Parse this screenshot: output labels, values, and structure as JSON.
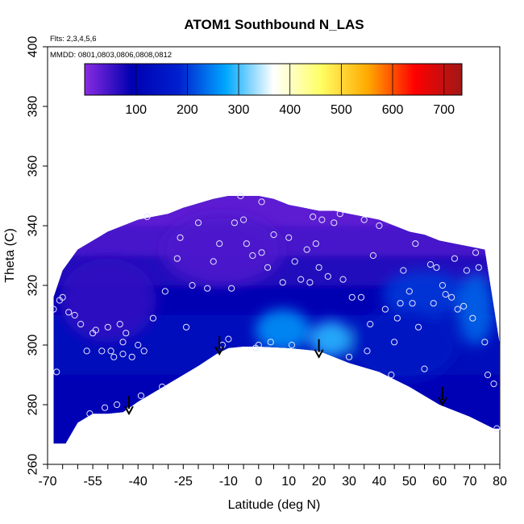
{
  "chart_data": {
    "type": "heatmap",
    "title": "ATOM1 Southbound N_LAS",
    "flights_note": "Flts: 2,3,4,5,6",
    "dates_note": "MMDD: 0801,0803,0806,0808,0812",
    "xlabel": "Latitude (deg N)",
    "ylabel": "Theta (C)",
    "xlim": [
      -70,
      80
    ],
    "ylim": [
      260,
      400
    ],
    "x_ticks": [
      -70,
      -55,
      -40,
      -25,
      -10,
      0,
      10,
      20,
      30,
      40,
      50,
      60,
      70,
      80
    ],
    "y_ticks": [
      260,
      280,
      300,
      320,
      340,
      360,
      380,
      400
    ],
    "colorbar": {
      "range": [
        0,
        735
      ],
      "ticks": [
        100,
        200,
        300,
        400,
        500,
        600,
        700
      ],
      "colors": [
        "#8a2be2",
        "#0000b0",
        "#0020d0",
        "#00a8ff",
        "#ffffff",
        "#ffff66",
        "#ffaa00",
        "#ff0000",
        "#a01818"
      ]
    },
    "coverage_upper": [
      [
        -68,
        316
      ],
      [
        -65,
        325
      ],
      [
        -60,
        332
      ],
      [
        -55,
        335
      ],
      [
        -50,
        338
      ],
      [
        -45,
        340
      ],
      [
        -40,
        342
      ],
      [
        -35,
        343
      ],
      [
        -30,
        344
      ],
      [
        -25,
        346
      ],
      [
        -20,
        347.5
      ],
      [
        -15,
        349
      ],
      [
        -10,
        350
      ],
      [
        -5,
        350
      ],
      [
        0,
        350
      ],
      [
        5,
        349
      ],
      [
        10,
        347
      ],
      [
        15,
        346
      ],
      [
        20,
        345
      ],
      [
        25,
        345
      ],
      [
        30,
        344
      ],
      [
        35,
        343
      ],
      [
        40,
        342
      ],
      [
        45,
        340
      ],
      [
        50,
        338
      ],
      [
        55,
        337
      ],
      [
        60,
        335
      ],
      [
        65,
        334
      ],
      [
        70,
        333
      ],
      [
        75,
        332
      ],
      [
        80,
        300
      ]
    ],
    "coverage_lower": [
      [
        80,
        300
      ],
      [
        80,
        272
      ],
      [
        78,
        272
      ],
      [
        70,
        276
      ],
      [
        60,
        280
      ],
      [
        50,
        286
      ],
      [
        40,
        291
      ],
      [
        30,
        294
      ],
      [
        20,
        298
      ],
      [
        10,
        299
      ],
      [
        0,
        299.5
      ],
      [
        -5,
        299.5
      ],
      [
        -10,
        299
      ],
      [
        -14,
        297
      ],
      [
        -20,
        293
      ],
      [
        -25,
        290
      ],
      [
        -30,
        287
      ],
      [
        -35,
        284
      ],
      [
        -40,
        281
      ],
      [
        -45,
        277.5
      ],
      [
        -50,
        277
      ],
      [
        -55,
        277
      ],
      [
        -60,
        274
      ],
      [
        -64,
        267
      ],
      [
        -68,
        267
      ],
      [
        -68,
        316
      ]
    ],
    "enhanced_regions": [
      {
        "center": [
          8,
          305
        ],
        "rx": 9,
        "ry": 7,
        "value": 260
      },
      {
        "center": [
          24,
          302
        ],
        "rx": 7,
        "ry": 6,
        "value": 290
      },
      {
        "center": [
          55,
          317
        ],
        "rx": 14,
        "ry": 8,
        "value": 200
      },
      {
        "center": [
          72,
          312
        ],
        "rx": 6,
        "ry": 12,
        "value": 230
      },
      {
        "center": [
          48,
          300
        ],
        "rx": 18,
        "ry": 12,
        "value": 150
      },
      {
        "center": [
          -50,
          315
        ],
        "rx": 16,
        "ry": 14,
        "value": 60
      },
      {
        "center": [
          -12,
          332
        ],
        "rx": 20,
        "ry": 12,
        "value": 40
      }
    ],
    "observations": [
      [
        -68,
        312
      ],
      [
        -67,
        291
      ],
      [
        -66,
        315
      ],
      [
        -65,
        316
      ],
      [
        -63,
        311
      ],
      [
        -61,
        310
      ],
      [
        -59,
        307
      ],
      [
        -57,
        298
      ],
      [
        -56,
        277
      ],
      [
        -55,
        304
      ],
      [
        -54,
        305
      ],
      [
        -52,
        298
      ],
      [
        -51,
        279
      ],
      [
        -50,
        306
      ],
      [
        -49,
        298
      ],
      [
        -48,
        296
      ],
      [
        -47,
        280
      ],
      [
        -46,
        307
      ],
      [
        -45,
        301
      ],
      [
        -45,
        297
      ],
      [
        -44,
        304
      ],
      [
        -43,
        278
      ],
      [
        -42,
        296
      ],
      [
        -40,
        300
      ],
      [
        -39,
        283
      ],
      [
        -38,
        298
      ],
      [
        -37,
        343
      ],
      [
        -35,
        309
      ],
      [
        -32,
        286
      ],
      [
        -31,
        318
      ],
      [
        -27,
        329
      ],
      [
        -26,
        336
      ],
      [
        -24,
        306
      ],
      [
        -22,
        320
      ],
      [
        -20,
        341
      ],
      [
        -17,
        319
      ],
      [
        -15,
        328
      ],
      [
        -13,
        334
      ],
      [
        -12,
        300
      ],
      [
        -10,
        302
      ],
      [
        -9,
        319
      ],
      [
        -8,
        341
      ],
      [
        -6,
        350
      ],
      [
        -5,
        342
      ],
      [
        -4,
        334
      ],
      [
        -2,
        330
      ],
      [
        -1,
        299
      ],
      [
        0,
        300
      ],
      [
        1,
        331
      ],
      [
        1,
        348
      ],
      [
        3,
        326
      ],
      [
        4,
        301
      ],
      [
        5,
        337
      ],
      [
        8,
        321
      ],
      [
        10,
        336
      ],
      [
        11,
        300
      ],
      [
        12,
        328
      ],
      [
        14,
        322
      ],
      [
        16,
        332
      ],
      [
        17,
        321
      ],
      [
        18,
        343
      ],
      [
        19,
        334
      ],
      [
        20,
        326
      ],
      [
        21,
        342
      ],
      [
        23,
        323
      ],
      [
        25,
        341
      ],
      [
        27,
        344
      ],
      [
        28,
        322
      ],
      [
        30,
        296
      ],
      [
        31,
        316
      ],
      [
        34,
        316
      ],
      [
        35,
        342
      ],
      [
        36,
        298
      ],
      [
        37,
        307
      ],
      [
        38,
        330
      ],
      [
        40,
        340
      ],
      [
        42,
        312
      ],
      [
        44,
        290
      ],
      [
        45,
        301
      ],
      [
        46,
        309
      ],
      [
        47,
        314
      ],
      [
        48,
        325
      ],
      [
        50,
        318
      ],
      [
        51,
        314
      ],
      [
        52,
        334
      ],
      [
        53,
        306
      ],
      [
        55,
        292
      ],
      [
        57,
        327
      ],
      [
        58,
        314
      ],
      [
        59,
        326
      ],
      [
        61,
        320
      ],
      [
        62,
        317
      ],
      [
        64,
        316
      ],
      [
        65,
        329
      ],
      [
        66,
        312
      ],
      [
        68,
        313
      ],
      [
        69,
        325
      ],
      [
        71,
        309
      ],
      [
        72,
        331
      ],
      [
        73,
        326
      ],
      [
        75,
        301
      ],
      [
        76,
        290
      ],
      [
        78,
        287
      ],
      [
        79,
        272
      ]
    ],
    "arrows": [
      [
        -43,
        277
      ],
      [
        -13,
        297
      ],
      [
        20,
        296
      ],
      [
        61,
        280
      ]
    ]
  }
}
